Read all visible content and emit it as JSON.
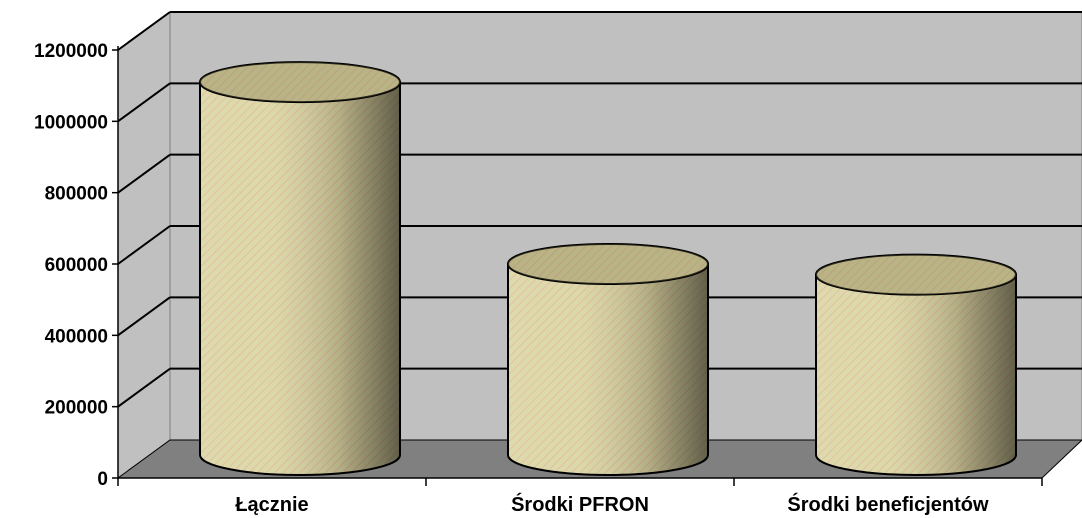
{
  "chart_data": {
    "type": "bar",
    "style": "3d-cylinder",
    "categories": [
      "Łącznie",
      "Środki PFRON",
      "Środki beneficjentów"
    ],
    "values": [
      1040000,
      530000,
      500000
    ],
    "title": "",
    "xlabel": "",
    "ylabel": "",
    "ylim": [
      0,
      1200000
    ],
    "yticks": [
      "0",
      "200000",
      "400000",
      "600000",
      "800000",
      "1000000",
      "1200000"
    ],
    "grid": true,
    "legend": "none",
    "colors": {
      "bar_fill": "#d6d49a",
      "bar_stripe": "#e8a6a6",
      "bar_shade": "#6f6f4e",
      "wall": "#c0c0c0",
      "floor": "#808080"
    }
  }
}
